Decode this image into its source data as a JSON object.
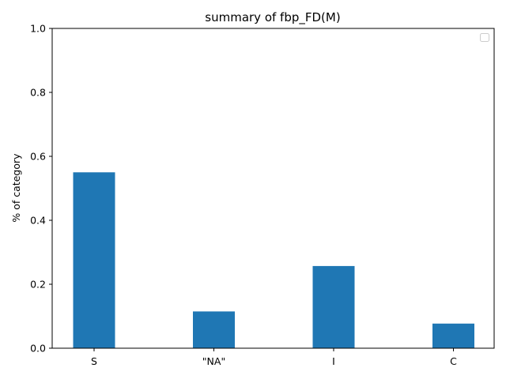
{
  "chart_data": {
    "type": "bar",
    "title": "summary of fbp_FD(M)",
    "xlabel": "",
    "ylabel": "% of category",
    "categories": [
      "S",
      "\"NA\"",
      "I",
      "C"
    ],
    "values": [
      0.55,
      0.115,
      0.257,
      0.077
    ],
    "ylim": [
      0,
      1.0
    ],
    "yticks": [
      "0.0",
      "0.2",
      "0.4",
      "0.6",
      "0.8",
      "1.0"
    ],
    "bar_color": "#1f77b4",
    "legend": {
      "placement": "top-right",
      "entries": []
    },
    "grid": false
  }
}
